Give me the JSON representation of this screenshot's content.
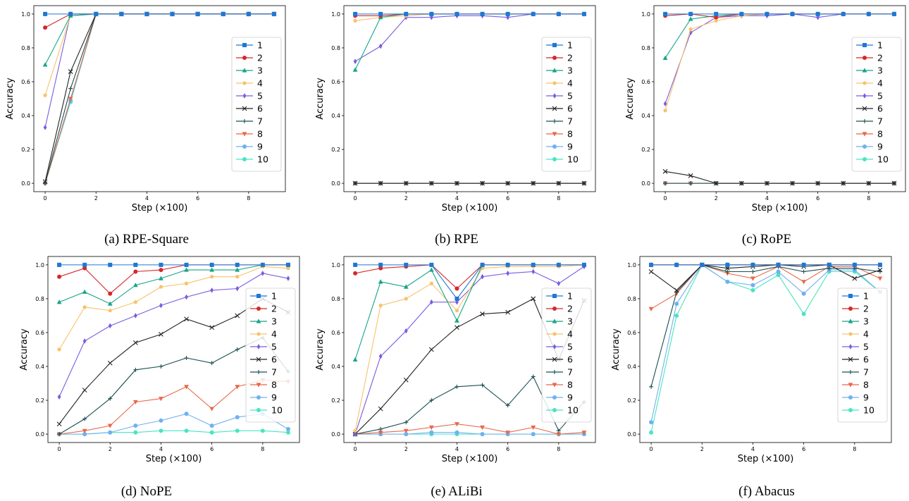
{
  "series_names": [
    "1",
    "2",
    "3",
    "4",
    "5",
    "6",
    "7",
    "8",
    "9",
    "10"
  ],
  "series_colors": [
    "#1f77d4",
    "#d62728",
    "#17a589",
    "#f7c26b",
    "#7b5ce0",
    "#222222",
    "#1b4f4f",
    "#e8684a",
    "#6fb1f0",
    "#48e5c2"
  ],
  "series_markers": [
    "square",
    "circle",
    "triangle",
    "pentagon",
    "diamond",
    "x",
    "plus",
    "tri_down",
    "circle",
    "circle"
  ],
  "chart_data": [
    {
      "type": "line",
      "caption": "(a) RPE-Square",
      "xlabel": "Step (×100)",
      "ylabel": "Accuracy",
      "xlim": [
        0,
        9
      ],
      "ylim": [
        0,
        1
      ],
      "xticks": [
        "0",
        "2",
        "4",
        "6",
        "8"
      ],
      "yticks": [
        "0.0",
        "0.2",
        "0.4",
        "0.6",
        "0.8",
        "1.0"
      ],
      "legend": "center-right",
      "x": [
        0,
        1,
        2,
        3,
        4,
        5,
        6,
        7,
        8,
        9
      ],
      "series": [
        {
          "name": "1",
          "values": [
            1,
            1,
            1,
            1,
            1,
            1,
            1,
            1,
            1,
            1
          ]
        },
        {
          "name": "2",
          "values": [
            0.92,
            1,
            1,
            1,
            1,
            1,
            1,
            1,
            1,
            1
          ]
        },
        {
          "name": "3",
          "values": [
            0.7,
            0.99,
            1,
            1,
            1,
            1,
            1,
            1,
            1,
            1
          ]
        },
        {
          "name": "4",
          "values": [
            0.52,
            0.99,
            1,
            1,
            1,
            1,
            1,
            1,
            1,
            1
          ]
        },
        {
          "name": "5",
          "values": [
            0.33,
            1,
            1,
            1,
            1,
            1,
            1,
            1,
            1,
            1
          ]
        },
        {
          "name": "6",
          "values": [
            0.01,
            0.66,
            1,
            1,
            1,
            1,
            1,
            1,
            1,
            1
          ]
        },
        {
          "name": "7",
          "values": [
            0.0,
            0.56,
            1,
            1,
            1,
            1,
            1,
            1,
            1,
            1
          ]
        },
        {
          "name": "8",
          "values": [
            0.0,
            0.5,
            1,
            1,
            1,
            1,
            1,
            1,
            1,
            1
          ]
        },
        {
          "name": "9",
          "values": [
            0.0,
            0.49,
            1,
            1,
            1,
            1,
            1,
            1,
            1,
            1
          ]
        },
        {
          "name": "10",
          "values": [
            0.0,
            0.48,
            1,
            1,
            1,
            1,
            1,
            1,
            1,
            1
          ]
        }
      ]
    },
    {
      "type": "line",
      "caption": "(b) RPE",
      "xlabel": "Step (×100)",
      "ylabel": "Accuracy",
      "xlim": [
        0,
        9
      ],
      "ylim": [
        0,
        1
      ],
      "xticks": [
        "0",
        "2",
        "4",
        "6",
        "8"
      ],
      "yticks": [
        "0.0",
        "0.2",
        "0.4",
        "0.6",
        "0.8",
        "1.0"
      ],
      "legend": "center-right",
      "x": [
        0,
        1,
        2,
        3,
        4,
        5,
        6,
        7,
        8,
        9
      ],
      "series": [
        {
          "name": "1",
          "values": [
            1,
            1,
            1,
            1,
            1,
            1,
            1,
            1,
            1,
            1
          ]
        },
        {
          "name": "2",
          "values": [
            0.99,
            0.99,
            1,
            1,
            1,
            1,
            1,
            1,
            1,
            1
          ]
        },
        {
          "name": "3",
          "values": [
            0.67,
            0.98,
            1,
            1,
            1,
            1,
            1,
            1,
            1,
            1
          ]
        },
        {
          "name": "4",
          "values": [
            0.96,
            0.98,
            0.99,
            1,
            1,
            1,
            1,
            1,
            1,
            1
          ]
        },
        {
          "name": "5",
          "values": [
            0.72,
            0.81,
            0.98,
            0.98,
            0.99,
            0.99,
            0.98,
            1,
            1,
            1
          ]
        },
        {
          "name": "6",
          "values": [
            0,
            0,
            0,
            0,
            0,
            0,
            0,
            0,
            0,
            0
          ]
        },
        {
          "name": "7",
          "values": [
            0,
            0,
            0,
            0,
            0,
            0,
            0,
            0,
            0,
            0
          ]
        },
        {
          "name": "8",
          "values": [
            0,
            0,
            0,
            0,
            0,
            0,
            0,
            0,
            0,
            0
          ]
        },
        {
          "name": "9",
          "values": [
            0,
            0,
            0,
            0,
            0,
            0,
            0,
            0,
            0,
            0
          ]
        },
        {
          "name": "10",
          "values": [
            0,
            0,
            0,
            0,
            0,
            0,
            0,
            0,
            0,
            0
          ]
        }
      ]
    },
    {
      "type": "line",
      "caption": "(c) RoPE",
      "xlabel": "Step (×100)",
      "ylabel": "Accuracy",
      "xlim": [
        0,
        9
      ],
      "ylim": [
        0,
        1
      ],
      "xticks": [
        "0",
        "2",
        "4",
        "6",
        "8"
      ],
      "yticks": [
        "0.0",
        "0.2",
        "0.4",
        "0.6",
        "0.8",
        "1.0"
      ],
      "legend": "center-right",
      "x": [
        0,
        1,
        2,
        3,
        4,
        5,
        6,
        7,
        8,
        9
      ],
      "series": [
        {
          "name": "1",
          "values": [
            1,
            1,
            1,
            1,
            1,
            1,
            1,
            1,
            1,
            1
          ]
        },
        {
          "name": "2",
          "values": [
            0.99,
            1,
            0.98,
            1,
            1,
            1,
            1,
            1,
            1,
            1
          ]
        },
        {
          "name": "3",
          "values": [
            0.74,
            0.97,
            0.99,
            1,
            1,
            1,
            1,
            1,
            1,
            1
          ]
        },
        {
          "name": "4",
          "values": [
            0.43,
            0.91,
            0.96,
            0.99,
            1,
            1,
            1,
            1,
            1,
            1
          ]
        },
        {
          "name": "5",
          "values": [
            0.47,
            0.89,
            0.98,
            0.99,
            0.99,
            1,
            0.98,
            1,
            1,
            1
          ]
        },
        {
          "name": "6",
          "values": [
            0.07,
            0.045,
            0,
            0,
            0,
            0,
            0,
            0,
            0,
            0
          ]
        },
        {
          "name": "7",
          "values": [
            0,
            0,
            0,
            0,
            0,
            0,
            0,
            0,
            0,
            0
          ]
        },
        {
          "name": "8",
          "values": [
            0,
            0,
            0,
            0,
            0,
            0,
            0,
            0,
            0,
            0
          ]
        },
        {
          "name": "9",
          "values": [
            0,
            0,
            0,
            0,
            0,
            0,
            0,
            0,
            0,
            0
          ]
        },
        {
          "name": "10",
          "values": [
            0,
            0,
            0,
            0,
            0,
            0,
            0,
            0,
            0,
            0
          ]
        }
      ]
    },
    {
      "type": "line",
      "caption": "(d) NoPE",
      "xlabel": "Step (×100)",
      "ylabel": "Accuracy",
      "xlim": [
        0,
        9
      ],
      "ylim": [
        0,
        1
      ],
      "xticks": [
        "0",
        "2",
        "4",
        "6",
        "8"
      ],
      "yticks": [
        "0.0",
        "0.2",
        "0.4",
        "0.6",
        "0.8",
        "1.0"
      ],
      "legend": "center-right",
      "x": [
        0,
        1,
        2,
        3,
        4,
        5,
        6,
        7,
        8,
        9
      ],
      "series": [
        {
          "name": "1",
          "values": [
            1,
            1,
            1,
            1,
            1,
            1,
            1,
            1,
            1,
            1
          ]
        },
        {
          "name": "2",
          "values": [
            0.93,
            0.98,
            0.83,
            0.96,
            0.97,
            1,
            1,
            1,
            1,
            1
          ]
        },
        {
          "name": "3",
          "values": [
            0.78,
            0.84,
            0.77,
            0.88,
            0.92,
            0.97,
            0.97,
            0.97,
            1,
            1
          ]
        },
        {
          "name": "4",
          "values": [
            0.5,
            0.75,
            0.73,
            0.78,
            0.87,
            0.89,
            0.93,
            0.93,
            0.99,
            0.98
          ]
        },
        {
          "name": "5",
          "values": [
            0.22,
            0.55,
            0.64,
            0.7,
            0.76,
            0.81,
            0.85,
            0.86,
            0.95,
            0.92
          ]
        },
        {
          "name": "6",
          "values": [
            0.06,
            0.26,
            0.42,
            0.54,
            0.59,
            0.68,
            0.63,
            0.7,
            0.8,
            0.72
          ]
        },
        {
          "name": "7",
          "values": [
            0.0,
            0.09,
            0.21,
            0.38,
            0.4,
            0.45,
            0.42,
            0.5,
            0.57,
            0.37
          ]
        },
        {
          "name": "8",
          "values": [
            0.0,
            0.02,
            0.05,
            0.19,
            0.21,
            0.28,
            0.15,
            0.28,
            0.32,
            0.31
          ]
        },
        {
          "name": "9",
          "values": [
            0.0,
            0.0,
            0.01,
            0.05,
            0.08,
            0.12,
            0.05,
            0.1,
            0.12,
            0.03
          ]
        },
        {
          "name": "10",
          "values": [
            0.0,
            0.0,
            0.01,
            0.01,
            0.02,
            0.02,
            0.01,
            0.02,
            0.02,
            0.01
          ]
        }
      ]
    },
    {
      "type": "line",
      "caption": "(e) ALiBi",
      "xlabel": "Step (×100)",
      "ylabel": "Accuracy",
      "xlim": [
        0,
        9
      ],
      "ylim": [
        0,
        1
      ],
      "xticks": [
        "0",
        "2",
        "4",
        "6",
        "8"
      ],
      "yticks": [
        "0.0",
        "0.2",
        "0.4",
        "0.6",
        "0.8",
        "1.0"
      ],
      "legend": "center-right",
      "x": [
        0,
        1,
        2,
        3,
        4,
        5,
        6,
        7,
        8,
        9
      ],
      "series": [
        {
          "name": "1",
          "values": [
            1,
            1,
            1,
            1,
            0.8,
            1,
            1,
            1,
            1,
            1
          ]
        },
        {
          "name": "2",
          "values": [
            0.95,
            0.98,
            0.99,
            1,
            0.86,
            1,
            1,
            1,
            1,
            1
          ]
        },
        {
          "name": "3",
          "values": [
            0.44,
            0.9,
            0.87,
            0.97,
            0.67,
            1,
            1,
            1,
            1,
            1
          ]
        },
        {
          "name": "4",
          "values": [
            0.02,
            0.76,
            0.8,
            0.89,
            0.73,
            0.98,
            0.99,
            0.99,
            0.99,
            1
          ]
        },
        {
          "name": "5",
          "values": [
            0.0,
            0.46,
            0.61,
            0.78,
            0.78,
            0.93,
            0.95,
            0.96,
            0.89,
            0.99
          ]
        },
        {
          "name": "6",
          "values": [
            0.0,
            0.15,
            0.32,
            0.5,
            0.63,
            0.71,
            0.72,
            0.8,
            0.44,
            0.79
          ]
        },
        {
          "name": "7",
          "values": [
            0.0,
            0.03,
            0.07,
            0.2,
            0.28,
            0.29,
            0.17,
            0.34,
            0.02,
            0.19
          ]
        },
        {
          "name": "8",
          "values": [
            0.0,
            0.01,
            0.02,
            0.04,
            0.06,
            0.04,
            0.01,
            0.04,
            0.0,
            0.01
          ]
        },
        {
          "name": "9",
          "values": [
            0.0,
            0.0,
            0.0,
            0.01,
            0.01,
            0.0,
            0.0,
            0.0,
            0.0,
            0.0
          ]
        },
        {
          "name": "10",
          "values": [
            0.0,
            0.0,
            0.0,
            0.0,
            0.0,
            0.0,
            0.0,
            0.0,
            0.0,
            0.0
          ]
        }
      ]
    },
    {
      "type": "line",
      "caption": "(f) Abacus",
      "xlabel": "Step (×100)",
      "ylabel": "Accuracy",
      "xlim": [
        0,
        9
      ],
      "ylim": [
        0,
        1
      ],
      "xticks": [
        "0",
        "2",
        "4",
        "6",
        "8"
      ],
      "yticks": [
        "0.0",
        "0.2",
        "0.4",
        "0.6",
        "0.8",
        "1.0"
      ],
      "legend": "center-right",
      "x": [
        0,
        1,
        2,
        3,
        4,
        5,
        6,
        7,
        8,
        9
      ],
      "series": [
        {
          "name": "1",
          "values": [
            1,
            1,
            1,
            1,
            1,
            1,
            1,
            1,
            1,
            1
          ]
        },
        {
          "name": "2",
          "values": [
            1,
            1,
            1,
            1,
            1,
            1,
            1,
            1,
            1,
            1
          ]
        },
        {
          "name": "3",
          "values": [
            1,
            1,
            1,
            1,
            1,
            1,
            1,
            1,
            1,
            1
          ]
        },
        {
          "name": "4",
          "values": [
            1,
            1,
            1,
            1,
            1,
            1,
            1,
            1,
            1,
            1
          ]
        },
        {
          "name": "5",
          "values": [
            1,
            1,
            1,
            1,
            1,
            1,
            1,
            1,
            1,
            1
          ]
        },
        {
          "name": "6",
          "values": [
            0.96,
            0.85,
            1,
            0.98,
            0.99,
            1,
            0.99,
            1,
            0.92,
            0.97
          ]
        },
        {
          "name": "7",
          "values": [
            0.28,
            0.84,
            1,
            0.96,
            0.96,
            0.99,
            0.96,
            0.98,
            0.98,
            0.96
          ]
        },
        {
          "name": "8",
          "values": [
            0.74,
            0.83,
            1,
            0.95,
            0.92,
            0.99,
            0.9,
            0.99,
            0.99,
            0.92
          ]
        },
        {
          "name": "9",
          "values": [
            0.07,
            0.77,
            1,
            0.9,
            0.88,
            0.96,
            0.83,
            0.97,
            0.97,
            0.84
          ]
        },
        {
          "name": "10",
          "values": [
            0.01,
            0.7,
            1,
            0.9,
            0.85,
            0.94,
            0.71,
            0.96,
            0.96,
            0.84
          ]
        }
      ]
    }
  ]
}
